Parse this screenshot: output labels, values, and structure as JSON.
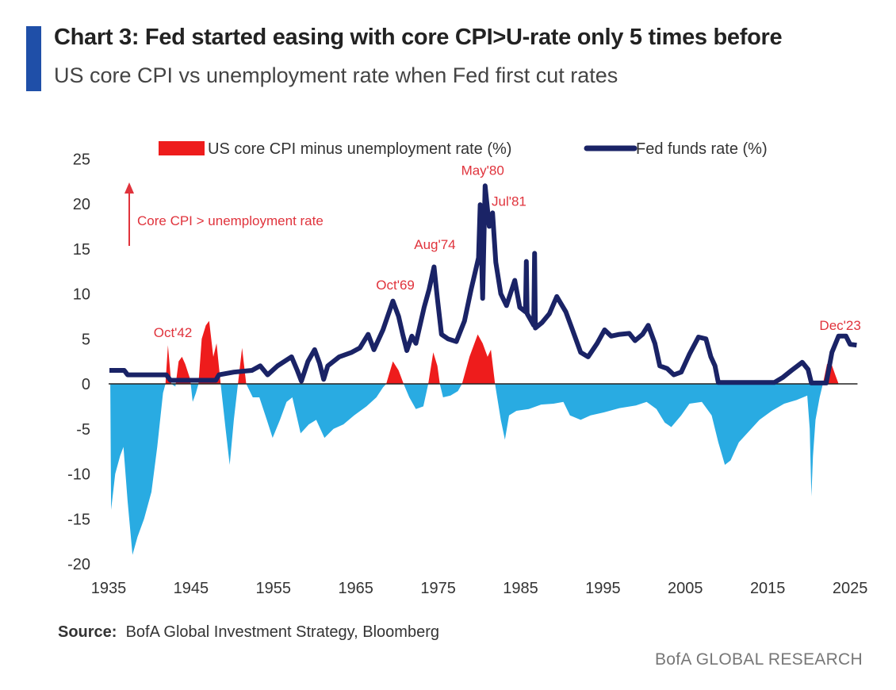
{
  "header": {
    "title": "Chart 3: Fed started easing with core CPI>U-rate only 5 times before",
    "subtitle": "US core CPI vs unemployment rate when Fed first cut rates"
  },
  "footer": {
    "source_label": "Source:",
    "source_text": "BofA Global Investment Strategy, Bloomberg",
    "brand": "BofA GLOBAL RESEARCH"
  },
  "chart_data": {
    "type": "area+line",
    "title": "",
    "xlabel": "",
    "ylabel": "",
    "xlim": [
      1935,
      2026
    ],
    "ylim": [
      -20,
      25
    ],
    "x_ticks": [
      "1935",
      "1945",
      "1955",
      "1965",
      "1975",
      "1985",
      "1995",
      "2005",
      "2015",
      "2025"
    ],
    "y_ticks": [
      "25",
      "20",
      "15",
      "10",
      "5",
      "0",
      "-5",
      "-10",
      "-15",
      "-20"
    ],
    "legend_position": "top",
    "colors": {
      "positive": "#ee1c1c",
      "negative": "#29abe2",
      "line": "#1a2366"
    },
    "series": [
      {
        "name": "US core CPI minus unemployment rate (%)",
        "type": "area",
        "points": [
          [
            1935.2,
            0
          ],
          [
            1935.3,
            -14
          ],
          [
            1935.8,
            -10
          ],
          [
            1936.4,
            -8
          ],
          [
            1936.8,
            -7
          ],
          [
            1937.3,
            -13
          ],
          [
            1937.9,
            -19
          ],
          [
            1938.5,
            -17
          ],
          [
            1939.3,
            -15
          ],
          [
            1940.2,
            -12
          ],
          [
            1940.9,
            -7
          ],
          [
            1941.6,
            -1
          ],
          [
            1941.9,
            0
          ],
          [
            1942.2,
            4.3
          ],
          [
            1942.6,
            0
          ],
          [
            1943.1,
            -0.3
          ],
          [
            1943.5,
            2.5
          ],
          [
            1943.9,
            3
          ],
          [
            1944.3,
            2.2
          ],
          [
            1944.9,
            0.5
          ],
          [
            1945.2,
            -2
          ],
          [
            1945.6,
            -1
          ],
          [
            1945.9,
            0
          ],
          [
            1946.3,
            5
          ],
          [
            1946.8,
            6.5
          ],
          [
            1947.2,
            7
          ],
          [
            1947.7,
            3
          ],
          [
            1948.1,
            4.5
          ],
          [
            1948.6,
            0
          ],
          [
            1949.2,
            -5
          ],
          [
            1949.7,
            -9
          ],
          [
            1950.2,
            -4
          ],
          [
            1950.7,
            0
          ],
          [
            1951.2,
            4
          ],
          [
            1951.7,
            0
          ],
          [
            1952.5,
            -1.5
          ],
          [
            1953.3,
            -1.5
          ],
          [
            1954.2,
            -4
          ],
          [
            1954.9,
            -6
          ],
          [
            1955.8,
            -4
          ],
          [
            1956.6,
            -2
          ],
          [
            1957.3,
            -1.5
          ],
          [
            1958.3,
            -5.5
          ],
          [
            1959.3,
            -4.5
          ],
          [
            1960.2,
            -4
          ],
          [
            1961.2,
            -6
          ],
          [
            1962.3,
            -5
          ],
          [
            1963.5,
            -4.5
          ],
          [
            1964.8,
            -3.5
          ],
          [
            1966.3,
            -2.5
          ],
          [
            1967.5,
            -1.5
          ],
          [
            1968.3,
            -0.4
          ],
          [
            1968.7,
            0
          ],
          [
            1969.5,
            2.5
          ],
          [
            1970.2,
            1.5
          ],
          [
            1970.8,
            0
          ],
          [
            1971.5,
            -1.5
          ],
          [
            1972.3,
            -2.8
          ],
          [
            1973.2,
            -2.5
          ],
          [
            1973.8,
            0
          ],
          [
            1974.4,
            3.5
          ],
          [
            1974.9,
            2
          ],
          [
            1975.2,
            0
          ],
          [
            1975.6,
            -1.5
          ],
          [
            1976.5,
            -1.3
          ],
          [
            1977.4,
            -0.8
          ],
          [
            1977.9,
            0
          ],
          [
            1978.8,
            3
          ],
          [
            1979.8,
            5.5
          ],
          [
            1980.4,
            4.5
          ],
          [
            1981,
            3
          ],
          [
            1981.4,
            3.8
          ],
          [
            1981.9,
            0
          ],
          [
            1982.6,
            -4
          ],
          [
            1983.1,
            -6.2
          ],
          [
            1983.6,
            -3.5
          ],
          [
            1984.5,
            -3
          ],
          [
            1986,
            -2.8
          ],
          [
            1987.5,
            -2.3
          ],
          [
            1989,
            -2.2
          ],
          [
            1990.2,
            -2
          ],
          [
            1991,
            -3.5
          ],
          [
            1992.3,
            -4
          ],
          [
            1993.5,
            -3.5
          ],
          [
            1995,
            -3.2
          ],
          [
            1997,
            -2.7
          ],
          [
            1999,
            -2.4
          ],
          [
            2000.3,
            -2
          ],
          [
            2001.5,
            -2.8
          ],
          [
            2002.5,
            -4.3
          ],
          [
            2003.3,
            -4.8
          ],
          [
            2004.5,
            -3.5
          ],
          [
            2005.5,
            -2.2
          ],
          [
            2007,
            -2
          ],
          [
            2008.2,
            -3.5
          ],
          [
            2009,
            -6.5
          ],
          [
            2009.8,
            -9
          ],
          [
            2010.5,
            -8.5
          ],
          [
            2011.5,
            -6.5
          ],
          [
            2012.5,
            -5.5
          ],
          [
            2014,
            -4
          ],
          [
            2015.5,
            -3
          ],
          [
            2017,
            -2.2
          ],
          [
            2018.5,
            -1.8
          ],
          [
            2019.8,
            -1.3
          ],
          [
            2020.1,
            -5
          ],
          [
            2020.3,
            -12.5
          ],
          [
            2020.5,
            -8
          ],
          [
            2020.8,
            -4
          ],
          [
            2021.3,
            -1.5
          ],
          [
            2021.7,
            0
          ],
          [
            2022.2,
            2.2
          ],
          [
            2022.7,
            2.3
          ],
          [
            2023.2,
            1
          ],
          [
            2023.6,
            0
          ],
          [
            2025.8,
            0
          ]
        ]
      },
      {
        "name": "Fed funds rate (%)",
        "type": "line",
        "points": [
          [
            1935.1,
            1.5
          ],
          [
            1936.9,
            1.5
          ],
          [
            1937.3,
            1.0
          ],
          [
            1942,
            1.0
          ],
          [
            1942.5,
            0.4
          ],
          [
            1948,
            0.4
          ],
          [
            1948.4,
            1.0
          ],
          [
            1950.2,
            1.3
          ],
          [
            1952.4,
            1.5
          ],
          [
            1953.4,
            2.0
          ],
          [
            1954.3,
            1.0
          ],
          [
            1955.5,
            2.0
          ],
          [
            1957.2,
            3.0
          ],
          [
            1957.9,
            1.5
          ],
          [
            1958.4,
            0.3
          ],
          [
            1959.2,
            2.5
          ],
          [
            1960,
            3.8
          ],
          [
            1960.6,
            2.3
          ],
          [
            1961.1,
            0.5
          ],
          [
            1961.6,
            2.0
          ],
          [
            1963,
            3.0
          ],
          [
            1964.5,
            3.5
          ],
          [
            1965.5,
            4.0
          ],
          [
            1966.5,
            5.5
          ],
          [
            1967.2,
            3.8
          ],
          [
            1968.3,
            6.0
          ],
          [
            1969.5,
            9.2
          ],
          [
            1970.2,
            7.5
          ],
          [
            1970.7,
            5.5
          ],
          [
            1971.2,
            3.7
          ],
          [
            1971.8,
            5.3
          ],
          [
            1972.3,
            4.5
          ],
          [
            1973.3,
            8.5
          ],
          [
            1973.9,
            10.5
          ],
          [
            1974.5,
            13.0
          ],
          [
            1974.9,
            9.5
          ],
          [
            1975.4,
            5.5
          ],
          [
            1976.2,
            5.0
          ],
          [
            1977.2,
            4.7
          ],
          [
            1978.2,
            7.0
          ],
          [
            1979,
            10.5
          ],
          [
            1979.9,
            14.0
          ],
          [
            1980.1,
            19.9
          ],
          [
            1980.4,
            9.5
          ],
          [
            1980.7,
            22.0
          ],
          [
            1981.2,
            17.5
          ],
          [
            1981.6,
            19.0
          ],
          [
            1982,
            13.5
          ],
          [
            1982.6,
            10.0
          ],
          [
            1983.3,
            8.7
          ],
          [
            1984.3,
            11.5
          ],
          [
            1984.9,
            8.5
          ],
          [
            1985.6,
            8.0
          ],
          [
            1985.7,
            13.6
          ],
          [
            1985.8,
            7.8
          ],
          [
            1986.6,
            6.5
          ],
          [
            1986.7,
            14.5
          ],
          [
            1986.8,
            6.2
          ],
          [
            1987.6,
            6.8
          ],
          [
            1988.5,
            7.8
          ],
          [
            1989.4,
            9.7
          ],
          [
            1990.5,
            8.0
          ],
          [
            1991.3,
            6.0
          ],
          [
            1992.3,
            3.5
          ],
          [
            1993.2,
            3.0
          ],
          [
            1994.3,
            4.5
          ],
          [
            1995.2,
            6.0
          ],
          [
            1996,
            5.3
          ],
          [
            1997,
            5.5
          ],
          [
            1998.2,
            5.6
          ],
          [
            1998.9,
            4.8
          ],
          [
            1999.8,
            5.5
          ],
          [
            2000.5,
            6.5
          ],
          [
            2001.3,
            4.5
          ],
          [
            2001.9,
            2.0
          ],
          [
            2002.8,
            1.7
          ],
          [
            2003.6,
            1.0
          ],
          [
            2004.5,
            1.3
          ],
          [
            2005.5,
            3.3
          ],
          [
            2006.6,
            5.2
          ],
          [
            2007.5,
            5.0
          ],
          [
            2008.1,
            3.0
          ],
          [
            2008.6,
            2.0
          ],
          [
            2009,
            0.15
          ],
          [
            2015.8,
            0.15
          ],
          [
            2016.8,
            0.7
          ],
          [
            2017.9,
            1.5
          ],
          [
            2019.2,
            2.4
          ],
          [
            2019.9,
            1.6
          ],
          [
            2020.3,
            0.1
          ],
          [
            2022.1,
            0.1
          ],
          [
            2022.8,
            3.5
          ],
          [
            2023.6,
            5.3
          ],
          [
            2024.5,
            5.3
          ],
          [
            2025,
            4.4
          ],
          [
            2025.8,
            4.3
          ]
        ]
      }
    ],
    "annotations": [
      {
        "text": "Oct'42",
        "x": 1942.8,
        "y": 5.2
      },
      {
        "text": "Oct'69",
        "x": 1969.8,
        "y": 10.5
      },
      {
        "text": "Aug'74",
        "x": 1974.6,
        "y": 15.0
      },
      {
        "text": "May'80",
        "x": 1980.4,
        "y": 23.2
      },
      {
        "text": "Jul'81",
        "x": 1983.6,
        "y": 19.8
      },
      {
        "text": "Dec'23",
        "x": 2023.8,
        "y": 6.0
      }
    ],
    "direction_note": "Core CPI > unemployment rate"
  }
}
